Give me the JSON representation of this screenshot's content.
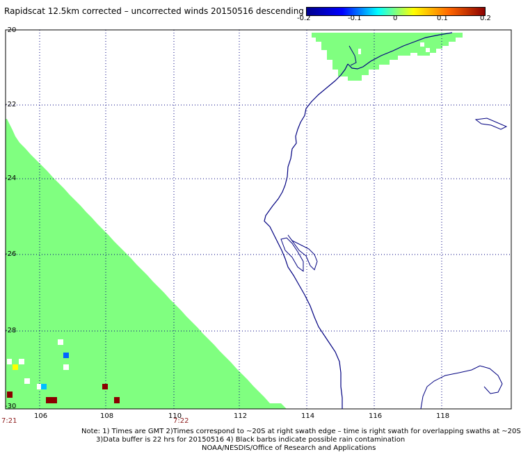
{
  "title": "Rapidscat 12.5km corrected – uncorrected winds 20150516 descending",
  "colorbar": {
    "labels": [
      "-0.2",
      "-0.1",
      "0",
      "0.1",
      "0.2"
    ],
    "colors": [
      "#00008b",
      "#0000ff",
      "#00ffff",
      "#ffff00",
      "#ff6600",
      "#8b0000"
    ]
  },
  "lat_labels": [
    "-20",
    "-22",
    "-24",
    "-26",
    "-28",
    "-30"
  ],
  "lon_labels": [
    "106",
    "108",
    "110",
    "112",
    "114",
    "116",
    "118"
  ],
  "time_labels": [
    "7:21",
    "7:22"
  ],
  "notes": [
    "Note: 1) Times are GMT 2)Times correspond to ~20S at right swath edge – time is right swath for overlapping swaths at ~20S",
    "3)Data buffer is 22 hrs for 20150516 4) Black barbs indicate possible rain contamination",
    "NOAA/NESDIS/Office of Research and Applications"
  ],
  "swath_color": "#80ff80",
  "coast_color": "#000080",
  "grid_color": "#000080"
}
